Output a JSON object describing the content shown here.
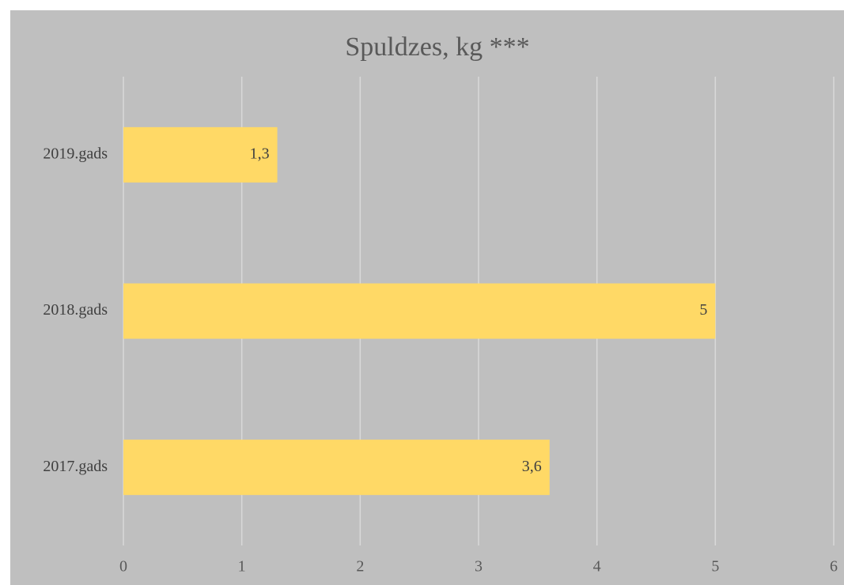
{
  "chart_data": {
    "type": "bar",
    "orientation": "horizontal",
    "title": "Spuldzes, kg ***",
    "categories": [
      "2019.gads",
      "2018.gads",
      "2017.gads"
    ],
    "values": [
      1.3,
      5,
      3.6
    ],
    "value_labels": [
      "1,3",
      "5",
      "3,6"
    ],
    "color": "#ffd966",
    "xlim": [
      0,
      6
    ],
    "xticks": [
      0,
      1,
      2,
      3,
      4,
      5,
      6
    ],
    "grid": true
  }
}
